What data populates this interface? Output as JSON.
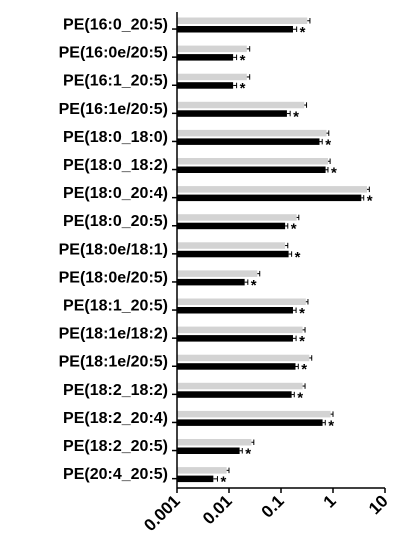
{
  "chart_data": {
    "type": "bar",
    "orientation": "horizontal",
    "x_scale": "log",
    "xlim": [
      0.001,
      10
    ],
    "x_ticks": [
      "0.001",
      "0.01",
      "0.1",
      "1",
      "10"
    ],
    "title": "",
    "xlabel": "",
    "ylabel": "",
    "grid": false,
    "categories": [
      "PE(16:0_20:5)",
      "PE(16:0e/20:5)",
      "PE(16:1_20:5)",
      "PE(16:1e/20:5)",
      "PE(18:0_18:0)",
      "PE(18:0_18:2)",
      "PE(18:0_20:4)",
      "PE(18:0_20:5)",
      "PE(18:0e/18:1)",
      "PE(18:0e/20:5)",
      "PE(18:1_20:5)",
      "PE(18:1e/18:2)",
      "PE(18:1e/20:5)",
      "PE(18:2_18:2)",
      "PE(18:2_20:4)",
      "PE(18:2_20:5)",
      "PE(20:4_20:5)"
    ],
    "series": [
      {
        "color": "#d3d3d3",
        "values": [
          0.32,
          0.022,
          0.022,
          0.28,
          0.75,
          0.8,
          4.5,
          0.2,
          0.12,
          0.035,
          0.3,
          0.26,
          0.35,
          0.26,
          0.9,
          0.027,
          0.009
        ],
        "error": [
          0.04,
          0.003,
          0.003,
          0.03,
          0.08,
          0.08,
          0.5,
          0.02,
          0.015,
          0.004,
          0.03,
          0.03,
          0.04,
          0.03,
          0.1,
          0.003,
          0.001
        ]
      },
      {
        "color": "#000000",
        "values": [
          0.17,
          0.012,
          0.012,
          0.13,
          0.55,
          0.72,
          3.5,
          0.12,
          0.14,
          0.02,
          0.17,
          0.17,
          0.19,
          0.16,
          0.63,
          0.016,
          0.005
        ],
        "error": [
          0.03,
          0.002,
          0.002,
          0.02,
          0.07,
          0.08,
          0.4,
          0.015,
          0.02,
          0.003,
          0.025,
          0.025,
          0.025,
          0.02,
          0.08,
          0.002,
          0.001
        ]
      }
    ],
    "significance": [
      "*",
      "*",
      "*",
      "*",
      "*",
      "*",
      "*",
      "*",
      "*",
      "*",
      "*",
      "*",
      "*",
      "*",
      "*",
      "*",
      "*"
    ]
  }
}
